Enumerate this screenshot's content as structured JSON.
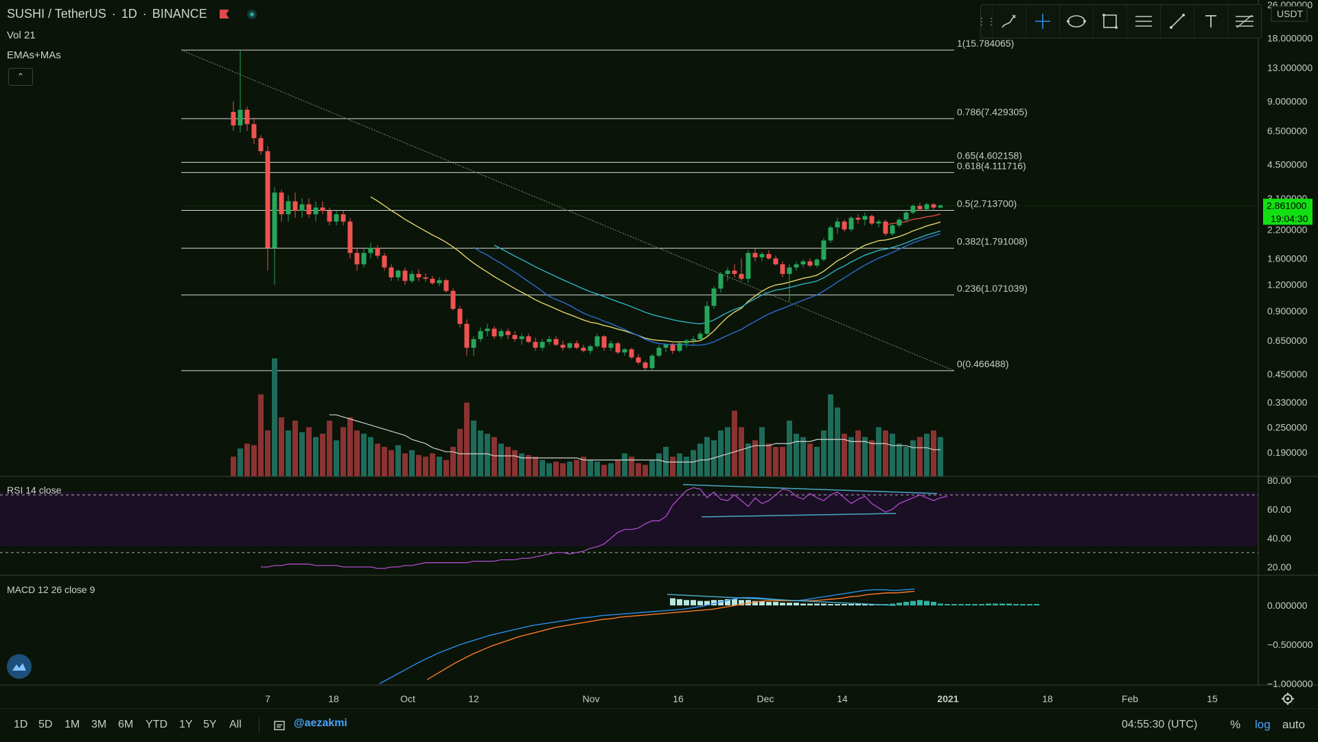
{
  "header": {
    "pair": "SUSHI / TetherUS",
    "interval": "1D",
    "exchange": "BINANCE",
    "indicator_vol": "Vol 21",
    "indicator_ma": "EMAs+MAs",
    "collapse_glyph": "⌃"
  },
  "toolbar": {
    "tools": [
      "brush-icon",
      "crosshair-icon",
      "ellipse-icon",
      "rectangle-icon",
      "parallel-lines-icon",
      "trend-line-icon",
      "text-icon",
      "fib-icon"
    ]
  },
  "bottom": {
    "ranges": [
      "1D",
      "5D",
      "1M",
      "3M",
      "6M",
      "YTD",
      "1Y",
      "5Y",
      "All"
    ],
    "author": "@aezakmi",
    "clock": "04:55:30 (UTC)",
    "pct": "%",
    "log": "log",
    "auto": "auto"
  },
  "colors": {
    "background": "#0a1408",
    "up": "#26a65b",
    "down": "#ef5350",
    "vol_up": "#1f6b5a",
    "vol_down": "#8b3232",
    "ma_yellow": "#e6d66a",
    "ma_cyan": "#2fb3c6",
    "ma_blue": "#2d6fd8",
    "ma_red": "#e04848",
    "rsi": "#b04cd0",
    "macd": "#2d8ef0",
    "signal": "#ff7a2a",
    "trend": "#4aa8c8",
    "price_tag": "#13e013"
  },
  "chart_data": {
    "type": "candlestick",
    "title": "SUSHI / TetherUS · 1D · BINANCE",
    "scale": "log",
    "price_axis": {
      "unit": "USDT",
      "ticks": [
        "26.000000",
        "18.000000",
        "13.000000",
        "9.000000",
        "6.500000",
        "4.500000",
        "3.100000",
        "2.200000",
        "1.600000",
        "1.200000",
        "0.900000",
        "0.650000",
        "0.450000",
        "0.330000",
        "0.250000",
        "0.190000"
      ]
    },
    "time_axis": {
      "labels": [
        "7",
        "18",
        "Oct",
        "12",
        "Nov",
        "16",
        "Dec",
        "14",
        "2021",
        "18",
        "Feb",
        "15"
      ]
    },
    "last_price": "2.861000",
    "countdown": "19:04:30",
    "fib_levels": [
      {
        "label": "1(15.784065)",
        "value": 15.784065
      },
      {
        "label": "0.786(7.429305)",
        "value": 7.429305
      },
      {
        "label": "0.65(4.602158)",
        "value": 4.602158
      },
      {
        "label": "0.618(4.111716)",
        "value": 4.111716
      },
      {
        "label": "0.5(2.713700)",
        "value": 2.7137
      },
      {
        "label": "0.382(1.791008)",
        "value": 1.791008
      },
      {
        "label": "0.236(1.071039)",
        "value": 1.071039
      },
      {
        "label": "0(0.466488)",
        "value": 0.466488
      }
    ],
    "candles": [
      [
        8.0,
        9.0,
        6.5,
        6.9
      ],
      [
        6.9,
        15.8,
        6.4,
        8.2
      ],
      [
        8.2,
        8.5,
        6.5,
        7.0
      ],
      [
        7.0,
        7.5,
        5.6,
        6.0
      ],
      [
        6.0,
        6.2,
        5.0,
        5.2
      ],
      [
        5.2,
        5.5,
        1.4,
        1.8
      ],
      [
        1.8,
        3.5,
        1.2,
        3.3
      ],
      [
        3.3,
        3.4,
        2.4,
        2.6
      ],
      [
        2.6,
        3.2,
        2.4,
        3.0
      ],
      [
        3.0,
        3.3,
        2.5,
        2.7
      ],
      [
        2.7,
        3.1,
        2.5,
        2.9
      ],
      [
        2.9,
        3.1,
        2.5,
        2.6
      ],
      [
        2.6,
        3.0,
        2.4,
        2.8
      ],
      [
        2.8,
        3.0,
        2.6,
        2.7
      ],
      [
        2.7,
        2.8,
        2.3,
        2.4
      ],
      [
        2.4,
        2.7,
        2.3,
        2.6
      ],
      [
        2.6,
        2.7,
        2.3,
        2.4
      ],
      [
        2.4,
        2.5,
        1.6,
        1.7
      ],
      [
        1.7,
        1.8,
        1.4,
        1.5
      ],
      [
        1.5,
        1.8,
        1.45,
        1.7
      ],
      [
        1.7,
        1.9,
        1.6,
        1.8
      ],
      [
        1.8,
        1.85,
        1.6,
        1.65
      ],
      [
        1.65,
        1.7,
        1.4,
        1.45
      ],
      [
        1.45,
        1.5,
        1.25,
        1.3
      ],
      [
        1.3,
        1.42,
        1.25,
        1.4
      ],
      [
        1.4,
        1.45,
        1.2,
        1.25
      ],
      [
        1.25,
        1.4,
        1.22,
        1.35
      ],
      [
        1.35,
        1.42,
        1.25,
        1.3
      ],
      [
        1.3,
        1.36,
        1.24,
        1.28
      ],
      [
        1.28,
        1.32,
        1.2,
        1.22
      ],
      [
        1.22,
        1.3,
        1.18,
        1.26
      ],
      [
        1.26,
        1.28,
        1.1,
        1.12
      ],
      [
        1.12,
        1.15,
        0.9,
        0.92
      ],
      [
        0.92,
        0.95,
        0.75,
        0.78
      ],
      [
        0.78,
        0.82,
        0.55,
        0.6
      ],
      [
        0.6,
        0.68,
        0.55,
        0.66
      ],
      [
        0.66,
        0.75,
        0.64,
        0.72
      ],
      [
        0.72,
        0.78,
        0.68,
        0.74
      ],
      [
        0.74,
        0.76,
        0.66,
        0.68
      ],
      [
        0.68,
        0.74,
        0.66,
        0.72
      ],
      [
        0.72,
        0.74,
        0.66,
        0.69
      ],
      [
        0.69,
        0.72,
        0.64,
        0.66
      ],
      [
        0.66,
        0.7,
        0.62,
        0.68
      ],
      [
        0.68,
        0.7,
        0.63,
        0.64
      ],
      [
        0.64,
        0.67,
        0.58,
        0.6
      ],
      [
        0.6,
        0.66,
        0.58,
        0.64
      ],
      [
        0.64,
        0.68,
        0.62,
        0.66
      ],
      [
        0.66,
        0.68,
        0.61,
        0.62
      ],
      [
        0.62,
        0.65,
        0.58,
        0.6
      ],
      [
        0.6,
        0.64,
        0.59,
        0.63
      ],
      [
        0.63,
        0.65,
        0.59,
        0.6
      ],
      [
        0.6,
        0.62,
        0.57,
        0.58
      ],
      [
        0.58,
        0.62,
        0.56,
        0.61
      ],
      [
        0.61,
        0.7,
        0.6,
        0.68
      ],
      [
        0.68,
        0.69,
        0.58,
        0.6
      ],
      [
        0.6,
        0.65,
        0.58,
        0.63
      ],
      [
        0.63,
        0.64,
        0.56,
        0.57
      ],
      [
        0.57,
        0.6,
        0.55,
        0.59
      ],
      [
        0.59,
        0.6,
        0.53,
        0.54
      ],
      [
        0.54,
        0.56,
        0.5,
        0.51
      ],
      [
        0.51,
        0.52,
        0.47,
        0.48
      ],
      [
        0.48,
        0.56,
        0.47,
        0.55
      ],
      [
        0.55,
        0.62,
        0.54,
        0.6
      ],
      [
        0.6,
        0.63,
        0.57,
        0.62
      ],
      [
        0.62,
        0.63,
        0.56,
        0.58
      ],
      [
        0.58,
        0.64,
        0.57,
        0.63
      ],
      [
        0.63,
        0.66,
        0.6,
        0.65
      ],
      [
        0.65,
        0.68,
        0.62,
        0.66
      ],
      [
        0.66,
        0.72,
        0.65,
        0.7
      ],
      [
        0.7,
        1.0,
        0.68,
        0.95
      ],
      [
        0.95,
        1.18,
        0.92,
        1.15
      ],
      [
        1.15,
        1.38,
        1.1,
        1.35
      ],
      [
        1.35,
        1.45,
        1.25,
        1.4
      ],
      [
        1.4,
        1.5,
        1.3,
        1.35
      ],
      [
        1.35,
        1.6,
        1.25,
        1.28
      ],
      [
        1.28,
        1.75,
        1.22,
        1.7
      ],
      [
        1.7,
        1.78,
        1.55,
        1.62
      ],
      [
        1.62,
        1.72,
        1.55,
        1.68
      ],
      [
        1.68,
        1.75,
        1.58,
        1.6
      ],
      [
        1.6,
        1.65,
        1.48,
        1.5
      ],
      [
        1.5,
        1.55,
        1.3,
        1.35
      ],
      [
        1.35,
        1.5,
        1.0,
        1.45
      ],
      [
        1.45,
        1.55,
        1.4,
        1.5
      ],
      [
        1.5,
        1.58,
        1.45,
        1.55
      ],
      [
        1.55,
        1.6,
        1.45,
        1.48
      ],
      [
        1.48,
        1.6,
        1.45,
        1.58
      ],
      [
        1.58,
        2.0,
        1.55,
        1.95
      ],
      [
        1.95,
        2.3,
        1.9,
        2.25
      ],
      [
        2.25,
        2.5,
        2.1,
        2.4
      ],
      [
        2.4,
        2.45,
        2.15,
        2.2
      ],
      [
        2.2,
        2.55,
        2.15,
        2.5
      ],
      [
        2.5,
        2.6,
        2.35,
        2.45
      ],
      [
        2.45,
        2.65,
        2.3,
        2.55
      ],
      [
        2.55,
        2.6,
        2.3,
        2.35
      ],
      [
        2.35,
        2.45,
        2.25,
        2.4
      ],
      [
        2.4,
        2.45,
        2.05,
        2.1
      ],
      [
        2.1,
        2.35,
        2.05,
        2.3
      ],
      [
        2.3,
        2.5,
        2.25,
        2.45
      ],
      [
        2.45,
        2.7,
        2.4,
        2.65
      ],
      [
        2.65,
        2.9,
        2.6,
        2.85
      ],
      [
        2.85,
        2.95,
        2.7,
        2.75
      ],
      [
        2.75,
        2.95,
        2.72,
        2.9
      ],
      [
        2.9,
        2.95,
        2.75,
        2.8
      ],
      [
        2.8,
        2.9,
        2.78,
        2.86
      ]
    ],
    "volume": [
      12,
      17,
      20,
      19,
      50,
      28,
      72,
      36,
      28,
      34,
      27,
      30,
      24,
      26,
      34,
      22,
      30,
      36,
      28,
      26,
      24,
      20,
      18,
      16,
      19,
      14,
      16,
      13,
      12,
      14,
      12,
      10,
      18,
      29,
      45,
      34,
      28,
      26,
      24,
      20,
      18,
      16,
      14,
      13,
      12,
      10,
      8,
      9,
      8,
      9,
      10,
      12,
      10,
      9,
      7,
      8,
      10,
      14,
      12,
      8,
      7,
      10,
      14,
      18,
      12,
      14,
      12,
      16,
      20,
      24,
      22,
      28,
      30,
      40,
      30,
      20,
      22,
      30,
      20,
      18,
      18,
      34,
      26,
      24,
      20,
      18,
      28,
      50,
      42,
      26,
      24,
      28,
      24,
      22,
      30,
      28,
      26,
      20,
      18,
      22,
      24,
      26,
      28,
      24,
      14
    ],
    "volume_ma": [
      30,
      30,
      29,
      28,
      27,
      26,
      25,
      24,
      23,
      22,
      21,
      20,
      18,
      17,
      16,
      14,
      13,
      12,
      12,
      11,
      11,
      11,
      11,
      11,
      10,
      10,
      10,
      10,
      9,
      9,
      9,
      9,
      9,
      9,
      9,
      9,
      9,
      8,
      8,
      8,
      8,
      8,
      8,
      8,
      8,
      8,
      8,
      8,
      8,
      7,
      7,
      7,
      7,
      7,
      8,
      8,
      9,
      10,
      11,
      12,
      13,
      14,
      15,
      15,
      15,
      16,
      16,
      16,
      17,
      17,
      17,
      18,
      18,
      18,
      18,
      18,
      17,
      17,
      17,
      16,
      16,
      16,
      15,
      15,
      15,
      14,
      14,
      14,
      13,
      13
    ],
    "rsi": {
      "label": "RSI 14 close",
      "ticks": [
        "80.00",
        "60.00",
        "40.00",
        "20.00"
      ],
      "upper": 70,
      "lower": 30,
      "values": [
        20,
        20,
        21,
        21,
        22,
        22,
        22,
        22,
        21,
        21,
        21,
        21,
        20,
        20,
        20,
        20,
        20,
        19,
        19,
        20,
        20,
        21,
        21,
        22,
        23,
        23,
        23,
        23,
        23,
        23,
        23,
        24,
        24,
        24,
        24,
        25,
        25,
        25,
        26,
        26,
        27,
        28,
        29,
        30,
        30,
        29,
        30,
        31,
        33,
        34,
        36,
        40,
        44,
        46,
        46,
        47,
        50,
        52,
        52,
        55,
        63,
        68,
        73,
        75,
        74,
        68,
        72,
        67,
        66,
        70,
        66,
        62,
        68,
        64,
        66,
        70,
        74,
        73,
        69,
        67,
        71,
        68,
        66,
        70,
        72,
        68,
        64,
        67,
        69,
        64,
        61,
        58,
        60,
        64,
        66,
        68,
        70,
        68,
        66,
        68,
        69
      ]
    },
    "macd": {
      "label": "MACD 12 26 close 9",
      "ticks": [
        "0.000000",
        "−0.500000",
        "−1.000000"
      ],
      "macd_values": [
        -1.0,
        -0.93,
        -0.86,
        -0.79,
        -0.72,
        -0.66,
        -0.6,
        -0.55,
        -0.5,
        -0.46,
        -0.42,
        -0.38,
        -0.35,
        -0.32,
        -0.29,
        -0.26,
        -0.24,
        -0.22,
        -0.2,
        -0.18,
        -0.16,
        -0.15,
        -0.13,
        -0.12,
        -0.11,
        -0.1,
        -0.09,
        -0.08,
        -0.07,
        -0.06,
        -0.05,
        -0.03,
        -0.01,
        0.02,
        0.05,
        0.08,
        0.1,
        0.1,
        0.09,
        0.08,
        0.07,
        0.06,
        0.07,
        0.09,
        0.11,
        0.13,
        0.15,
        0.17,
        0.19,
        0.2,
        0.2,
        0.19,
        0.2,
        0.21
      ],
      "signal_values": [
        -0.95,
        -0.88,
        -0.81,
        -0.74,
        -0.68,
        -0.62,
        -0.57,
        -0.52,
        -0.48,
        -0.44,
        -0.4,
        -0.37,
        -0.34,
        -0.31,
        -0.28,
        -0.26,
        -0.24,
        -0.22,
        -0.2,
        -0.18,
        -0.17,
        -0.15,
        -0.14,
        -0.13,
        -0.12,
        -0.11,
        -0.1,
        -0.09,
        -0.08,
        -0.07,
        -0.06,
        -0.05,
        -0.03,
        -0.01,
        0.01,
        0.03,
        0.05,
        0.06,
        0.06,
        0.06,
        0.06,
        0.06,
        0.06,
        0.07,
        0.08,
        0.09,
        0.11,
        0.12,
        0.14,
        0.15,
        0.16,
        0.16,
        0.17,
        0.18
      ],
      "histogram": [
        0.08,
        0.07,
        0.06,
        0.06,
        0.05,
        0.05,
        0.06,
        0.06,
        0.07,
        0.07,
        0.06,
        0.06,
        0.05,
        0.05,
        0.04,
        0.04,
        0.03,
        0.03,
        0.03,
        0.02,
        0.02,
        0.02,
        0.02,
        0.01,
        0.01,
        0.01,
        0.01,
        0.01,
        0.01,
        0.0,
        0.01,
        0.01,
        0.02,
        0.03,
        0.04,
        0.05,
        0.06,
        0.05,
        0.04,
        0.02,
        0.01,
        0.0,
        0.0,
        0.0,
        0.01,
        0.01,
        0.02,
        0.02,
        0.02,
        0.02,
        0.01,
        0.01,
        0.01,
        0.01
      ]
    }
  }
}
